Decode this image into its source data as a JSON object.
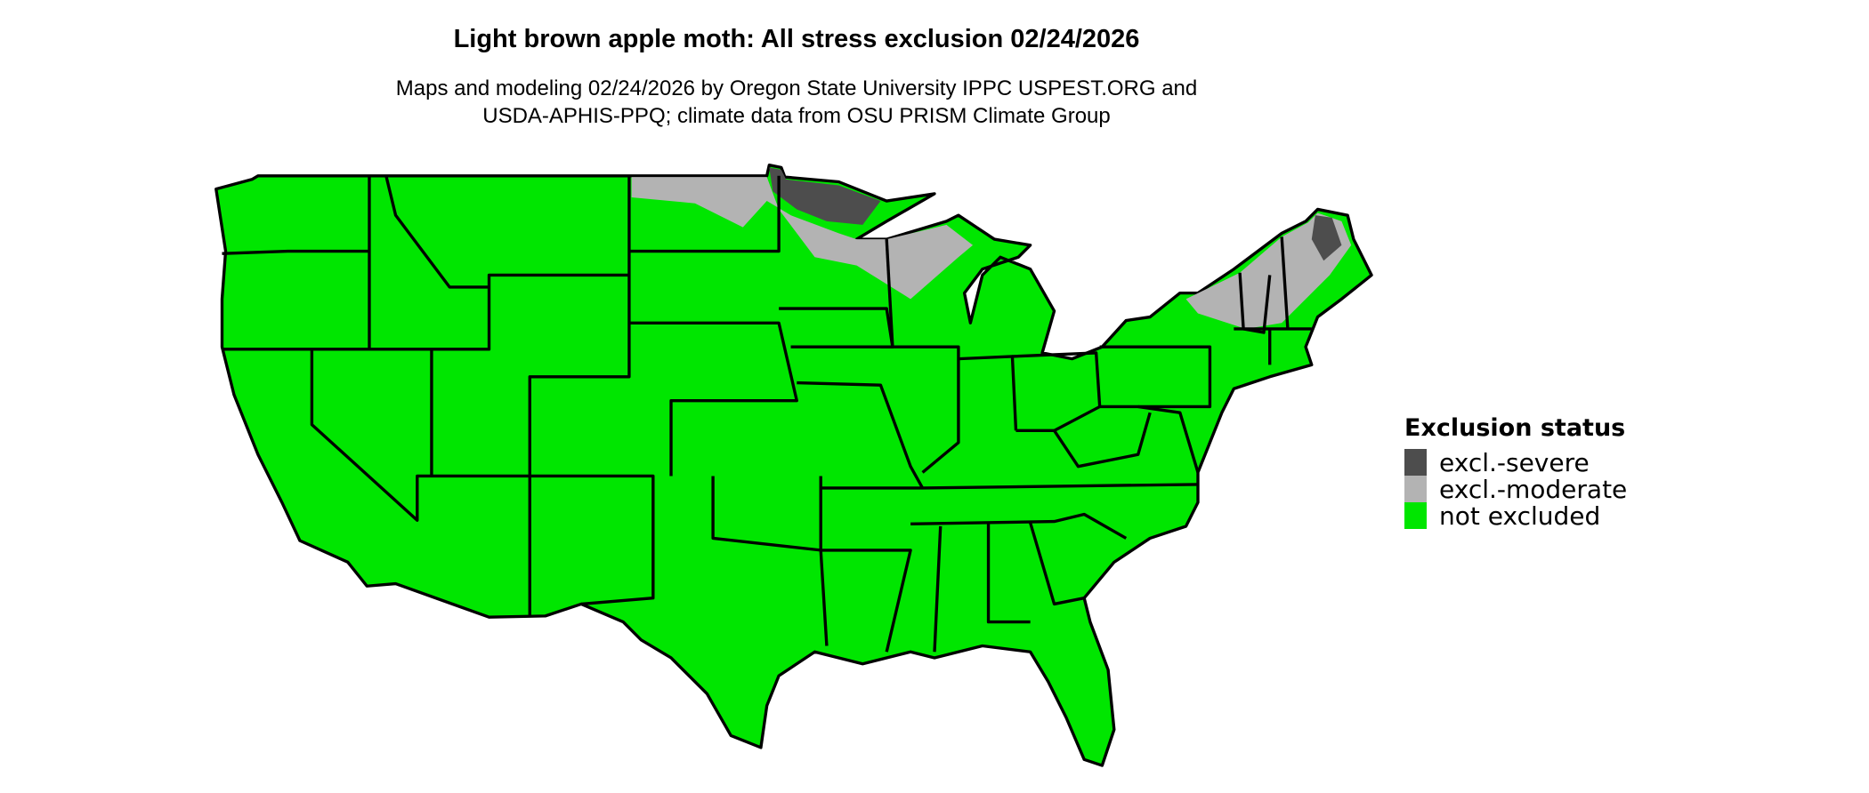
{
  "title": "Light brown apple moth: All stress exclusion 02/24/2026",
  "subtitle_line1": "Maps and modeling 02/24/2026 by Oregon State University IPPC USPEST.ORG and",
  "subtitle_line2": "USDA-APHIS-PPQ; climate data from OSU PRISM Climate Group",
  "legend": {
    "title": "Exclusion status",
    "items": [
      {
        "label": "excl.-severe",
        "color": "#4d4d4d"
      },
      {
        "label": "excl.-moderate",
        "color": "#b3b3b3"
      },
      {
        "label": "not excluded",
        "color": "#00e600"
      }
    ]
  }
}
